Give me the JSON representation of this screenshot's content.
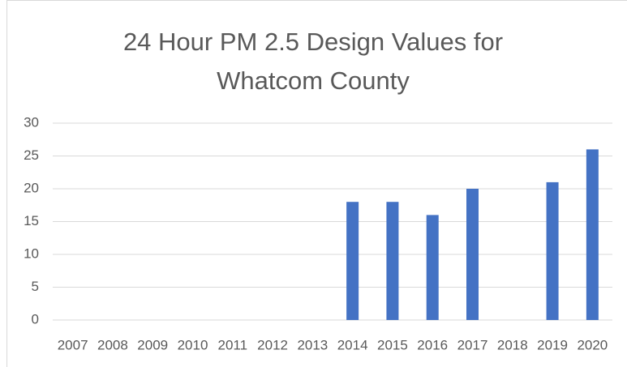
{
  "chart_data": {
    "type": "bar",
    "title": "24 Hour PM 2.5 Design Values for Whatcom County",
    "categories": [
      "2007",
      "2008",
      "2009",
      "2010",
      "2011",
      "2012",
      "2013",
      "2014",
      "2015",
      "2016",
      "2017",
      "2018",
      "2019",
      "2020"
    ],
    "values": [
      null,
      null,
      null,
      null,
      null,
      null,
      null,
      18,
      18,
      16,
      20,
      null,
      21,
      26
    ],
    "color": "#4472c4",
    "ylim": [
      0,
      30
    ],
    "yticks": [
      0,
      5,
      10,
      15,
      20,
      25,
      30
    ],
    "grid": true
  }
}
